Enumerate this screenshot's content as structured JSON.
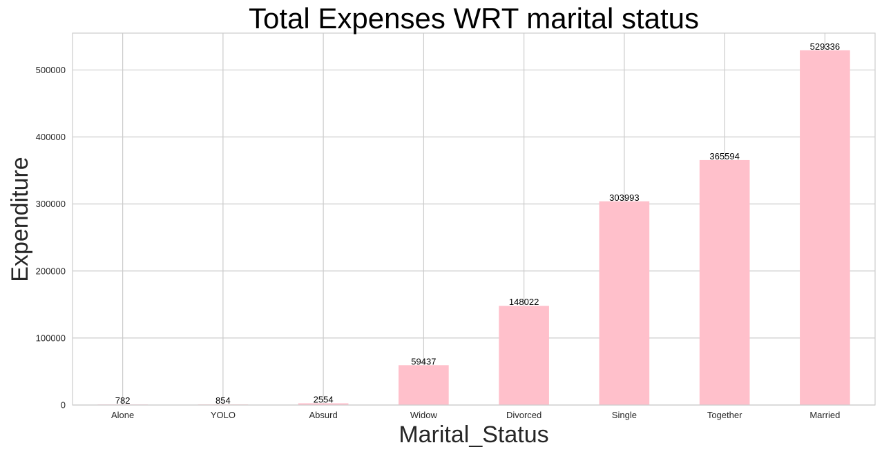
{
  "chart_data": {
    "type": "bar",
    "title": "Total Expenses WRT marital status",
    "xlabel": "Marital_Status",
    "ylabel": "Expenditure",
    "categories": [
      "Alone",
      "YOLO",
      "Absurd",
      "Widow",
      "Divorced",
      "Single",
      "Together",
      "Married"
    ],
    "values": [
      782,
      854,
      2554,
      59437,
      148022,
      303993,
      365594,
      529336
    ],
    "data_labels": [
      "782",
      "854",
      "2554",
      "59437",
      "148022",
      "303993",
      "365594",
      "529336"
    ],
    "ylim": [
      0,
      555000
    ],
    "yticks": [
      0,
      100000,
      200000,
      300000,
      400000,
      500000
    ],
    "ytick_labels": [
      "0",
      "100000",
      "200000",
      "300000",
      "400000",
      "500000"
    ],
    "grid": true,
    "legend": "none",
    "colors": {
      "bar": "#ffc0cb",
      "grid": "#cccccc",
      "frame": "#cccccc",
      "background": "#ffffff"
    }
  }
}
